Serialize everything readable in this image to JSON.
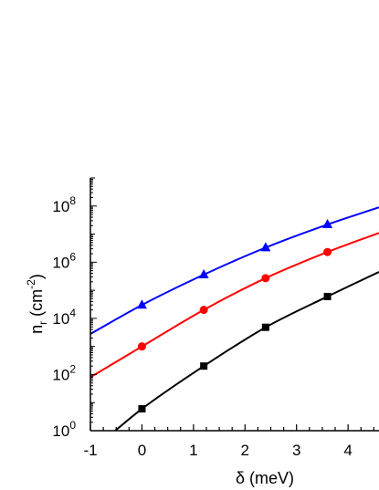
{
  "chart_data": {
    "type": "line",
    "title": "",
    "xlabel_symbol": "δ",
    "xlabel_unit": "(meV)",
    "ylabel_main": "n",
    "ylabel_sub": "r",
    "ylabel_unit_open": "(cm",
    "ylabel_unit_exp": "-2",
    "ylabel_unit_close": ")",
    "xlim": [
      -1,
      4.6
    ],
    "ylim": [
      1,
      1000000000.0
    ],
    "yscale": "log",
    "x_ticks": [
      "-1",
      "0",
      "1",
      "2",
      "3",
      "4"
    ],
    "y_ticks": [
      {
        "base": "10",
        "exp": "0"
      },
      {
        "base": "10",
        "exp": "2"
      },
      {
        "base": "10",
        "exp": "4"
      },
      {
        "base": "10",
        "exp": "6"
      },
      {
        "base": "10",
        "exp": "8"
      }
    ],
    "grid": false,
    "legend": "none",
    "series": [
      {
        "color": "#0000ff",
        "marker": "triangle",
        "x": [
          0,
          1.2,
          2.4,
          3.6
        ],
        "y": [
          30000,
          360000,
          3300000,
          22000000
        ],
        "curve_x": [
          -1,
          0,
          1.2,
          2.4,
          3.6,
          4.6
        ],
        "curve_y": [
          2800,
          30000,
          360000,
          3300000,
          22000000,
          90000000
        ]
      },
      {
        "color": "#ff0000",
        "marker": "circle",
        "x": [
          0,
          1.2,
          2.4,
          3.6
        ],
        "y": [
          1000,
          20000,
          270000,
          2300000
        ],
        "curve_x": [
          -1,
          0,
          1.2,
          2.4,
          3.6,
          4.6
        ],
        "curve_y": [
          80,
          1000,
          20000,
          270000,
          2300000,
          11000000
        ]
      },
      {
        "color": "#000000",
        "marker": "square",
        "x": [
          0,
          1.2,
          2.4,
          3.6
        ],
        "y": [
          6,
          200,
          4800,
          60000
        ],
        "curve_x": [
          -0.55,
          0,
          1.2,
          2.4,
          3.6,
          4.6
        ],
        "curve_y": [
          0.9,
          6,
          200,
          4800,
          60000,
          450000
        ]
      }
    ]
  }
}
